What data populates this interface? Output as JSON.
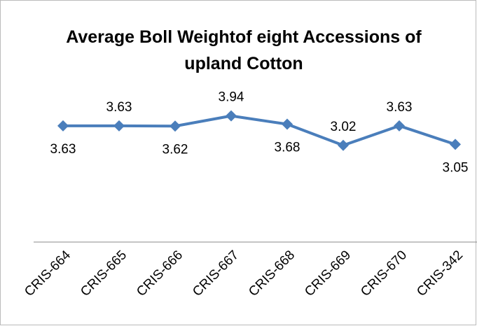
{
  "chart_data": {
    "type": "line",
    "title": "Average Boll Weightof eight Accessions of upland Cotton",
    "categories": [
      "CRIS-664",
      "CRIS-665",
      "CRIS-666",
      "CRIS-667",
      "CRIS-668",
      "CRIS-669",
      "CRIS-670",
      "CRIS-342"
    ],
    "values": [
      3.63,
      3.63,
      3.62,
      3.94,
      3.68,
      3.02,
      3.63,
      3.05
    ],
    "color": "#4a7ebb",
    "ylim": [
      0,
      4.5
    ]
  }
}
